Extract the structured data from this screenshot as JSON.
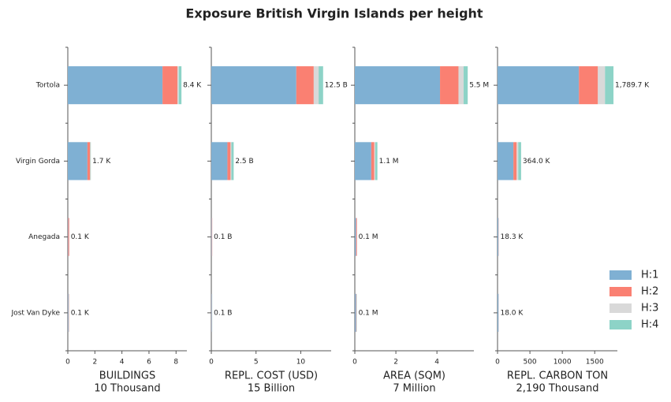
{
  "title": "Exposure British Virgin Islands per height",
  "legend": {
    "position": "right",
    "items": [
      {
        "name": "H:1",
        "color": "#7fb0d3"
      },
      {
        "name": "H:2",
        "color": "#fa8072"
      },
      {
        "name": "H:3",
        "color": "#d9d9d9"
      },
      {
        "name": "H:4",
        "color": "#8dd3c7"
      }
    ]
  },
  "chart_data": [
    {
      "type": "bar",
      "orientation": "horizontal",
      "x_label": "BUILDINGS",
      "x_sublabel": "10 Thousand",
      "categories": [
        "Tortola",
        "Virgin Gorda",
        "Anegada",
        "Jost Van Dyke"
      ],
      "series": [
        {
          "values": [
            7.0,
            1.45,
            0.03,
            0.05
          ]
        },
        {
          "values": [
            1.1,
            0.2,
            0.07,
            0.03
          ]
        },
        {
          "values": [
            0.1,
            0.02,
            0,
            0.01
          ]
        },
        {
          "values": [
            0.2,
            0.03,
            0,
            0.01
          ]
        }
      ],
      "totals": [
        8.4,
        1.7,
        0.1,
        0.1
      ],
      "total_labels": [
        "8.4 K",
        "1.7 K",
        "0.1 K",
        "0.1 K"
      ],
      "xlim": [
        0,
        8.8
      ],
      "xticks": [
        0,
        2,
        4,
        6,
        8
      ]
    },
    {
      "type": "bar",
      "orientation": "horizontal",
      "x_label": "REPL. COST (USD)",
      "x_sublabel": "15 Billion",
      "series": [
        {
          "values": [
            9.5,
            1.8,
            0.06,
            0.06
          ]
        },
        {
          "values": [
            1.95,
            0.35,
            0.04,
            0.02
          ]
        },
        {
          "values": [
            0.55,
            0.1,
            0,
            0.01
          ]
        },
        {
          "values": [
            0.5,
            0.25,
            0,
            0.01
          ]
        }
      ],
      "totals": [
        12.5,
        2.5,
        0.1,
        0.1
      ],
      "total_labels": [
        "12.5 B",
        "2.5 B",
        "0.1 B",
        "0.1 B"
      ],
      "xlim": [
        0,
        13.4
      ],
      "xticks": [
        0,
        5,
        10
      ]
    },
    {
      "type": "bar",
      "orientation": "horizontal",
      "x_label": "AREA (SQM)",
      "x_sublabel": "7 Million",
      "series": [
        {
          "values": [
            4.15,
            0.8,
            0.06,
            0.06
          ]
        },
        {
          "values": [
            0.9,
            0.15,
            0.04,
            0.02
          ]
        },
        {
          "values": [
            0.25,
            0.05,
            0,
            0.01
          ]
        },
        {
          "values": [
            0.2,
            0.1,
            0,
            0.01
          ]
        }
      ],
      "totals": [
        5.5,
        1.1,
        0.1,
        0.1
      ],
      "total_labels": [
        "5.5 M",
        "1.1 M",
        "0.1 M",
        "0.1 M"
      ],
      "xlim": [
        0,
        5.8
      ],
      "xticks": [
        0,
        2,
        4
      ]
    },
    {
      "type": "bar",
      "orientation": "horizontal",
      "x_label": "REPL. CARBON TON",
      "x_sublabel": "2,190 Thousand",
      "series": [
        {
          "values": [
            1256,
            245,
            15,
            16
          ]
        },
        {
          "values": [
            293,
            50,
            3.3,
            2
          ]
        },
        {
          "values": [
            110,
            25,
            0,
            0
          ]
        },
        {
          "values": [
            130.7,
            44,
            0,
            0
          ]
        }
      ],
      "totals": [
        1789.7,
        364.0,
        18.3,
        18.0
      ],
      "total_labels": [
        "1,789.7 K",
        "364.0 K",
        "18.3 K",
        "18.0 K"
      ],
      "xlim": [
        0,
        1850
      ],
      "xticks": [
        0,
        500,
        1000,
        1500
      ]
    }
  ]
}
